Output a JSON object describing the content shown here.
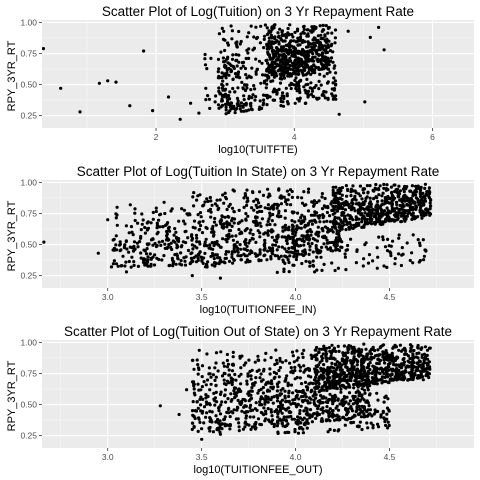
{
  "chart_data": [
    {
      "type": "scatter",
      "title": "Scatter Plot of Log(Tuition) on 3 Yr Repayment Rate",
      "xlabel": "log10(TUITFTE)",
      "ylabel": "RPY_3YR_RT",
      "xlim": [
        0.35,
        6.6
      ],
      "ylim": [
        0.15,
        1.02
      ],
      "x_ticks": [
        2,
        4,
        6
      ],
      "x_tick_labels": [
        "2",
        "4",
        "6"
      ],
      "y_ticks": [
        0.25,
        0.5,
        0.75,
        1.0
      ],
      "y_tick_labels": [
        "0.25",
        "0.50",
        "0.75",
        "1.00"
      ],
      "grid": true,
      "point_color": "#000000",
      "panel_bg": "#ebebeb",
      "grid_color": "#ffffff",
      "outliers": [
        [
          0.37,
          0.79
        ],
        [
          0.62,
          0.47
        ],
        [
          0.9,
          0.28
        ],
        [
          1.18,
          0.51
        ],
        [
          1.3,
          0.53
        ],
        [
          1.42,
          0.52
        ],
        [
          1.62,
          0.33
        ],
        [
          1.82,
          0.77
        ],
        [
          1.95,
          0.29
        ],
        [
          2.18,
          0.4
        ],
        [
          2.35,
          0.22
        ],
        [
          2.5,
          0.35
        ],
        [
          2.62,
          0.27
        ],
        [
          2.72,
          0.47
        ],
        [
          4.65,
          0.26
        ],
        [
          4.78,
          0.93
        ],
        [
          5.02,
          0.36
        ],
        [
          5.1,
          0.88
        ],
        [
          5.22,
          0.96
        ],
        [
          5.3,
          0.78
        ]
      ],
      "clusters": [
        {
          "x_range": [
            2.9,
            4.6
          ],
          "y_range": [
            0.25,
            0.98
          ],
          "count": 500,
          "trend": 0.22
        },
        {
          "x_range": [
            3.6,
            4.5
          ],
          "y_range": [
            0.55,
            0.99
          ],
          "count": 400,
          "trend": 0.1
        },
        {
          "x_range": [
            2.7,
            3.2
          ],
          "y_range": [
            0.3,
            0.8
          ],
          "count": 40,
          "trend": 0.0
        }
      ]
    },
    {
      "type": "scatter",
      "title": "Scatter Plot of Log(Tuition In State) on 3 Yr Repayment Rate",
      "xlabel": "log10(TUITIONFEE_IN)",
      "ylabel": "RPY_3YR_RT",
      "xlim": [
        2.65,
        4.95
      ],
      "ylim": [
        0.15,
        1.02
      ],
      "x_ticks": [
        3.0,
        3.5,
        4.0,
        4.5
      ],
      "x_tick_labels": [
        "3.0",
        "3.5",
        "4.0",
        "4.5"
      ],
      "y_ticks": [
        0.25,
        0.5,
        0.75,
        1.0
      ],
      "y_tick_labels": [
        "0.25",
        "0.50",
        "0.75",
        "1.00"
      ],
      "grid": true,
      "point_color": "#000000",
      "panel_bg": "#ebebeb",
      "grid_color": "#ffffff",
      "outliers": [
        [
          2.66,
          0.52
        ],
        [
          2.95,
          0.43
        ],
        [
          3.0,
          0.7
        ],
        [
          3.02,
          0.32
        ],
        [
          3.05,
          0.8
        ],
        [
          3.1,
          0.28
        ],
        [
          3.12,
          0.82
        ],
        [
          3.3,
          0.84
        ],
        [
          3.45,
          0.25
        ],
        [
          3.6,
          0.23
        ]
      ],
      "clusters": [
        {
          "x_range": [
            3.02,
            3.45
          ],
          "y_range": [
            0.3,
            0.8
          ],
          "count": 220,
          "trend": 0.05
        },
        {
          "x_range": [
            3.45,
            4.25
          ],
          "y_range": [
            0.3,
            0.95
          ],
          "count": 650,
          "trend": 0.25
        },
        {
          "x_range": [
            4.2,
            4.72
          ],
          "y_range": [
            0.6,
            0.99
          ],
          "count": 550,
          "trend": 0.2
        },
        {
          "x_range": [
            3.9,
            4.72
          ],
          "y_range": [
            0.25,
            0.6
          ],
          "count": 120,
          "trend": 0.15
        }
      ]
    },
    {
      "type": "scatter",
      "title": "Scatter Plot of Log(Tuition Out of State) on 3 Yr Repayment Rate",
      "xlabel": "log10(TUITIONFEE_OUT)",
      "ylabel": "RPY_3YR_RT",
      "xlim": [
        2.65,
        4.95
      ],
      "ylim": [
        0.15,
        1.02
      ],
      "x_ticks": [
        3.0,
        3.5,
        4.0,
        4.5
      ],
      "x_tick_labels": [
        "3.0",
        "3.5",
        "4.0",
        "4.5"
      ],
      "y_ticks": [
        0.25,
        0.5,
        0.75,
        1.0
      ],
      "y_tick_labels": [
        "0.25",
        "0.50",
        "0.75",
        "1.00"
      ],
      "grid": true,
      "point_color": "#000000",
      "panel_bg": "#ebebeb",
      "grid_color": "#ffffff",
      "outliers": [
        [
          3.28,
          0.49
        ],
        [
          3.38,
          0.42
        ],
        [
          3.42,
          0.62
        ],
        [
          3.45,
          0.3
        ],
        [
          3.5,
          0.22
        ],
        [
          3.55,
          0.72
        ],
        [
          3.6,
          0.26
        ],
        [
          4.68,
          0.7
        ]
      ],
      "clusters": [
        {
          "x_range": [
            3.45,
            4.4
          ],
          "y_range": [
            0.25,
            0.95
          ],
          "count": 800,
          "trend": 0.25
        },
        {
          "x_range": [
            4.1,
            4.72
          ],
          "y_range": [
            0.6,
            0.99
          ],
          "count": 650,
          "trend": 0.2
        },
        {
          "x_range": [
            3.9,
            4.5
          ],
          "y_range": [
            0.25,
            0.6
          ],
          "count": 150,
          "trend": 0.1
        }
      ]
    }
  ]
}
